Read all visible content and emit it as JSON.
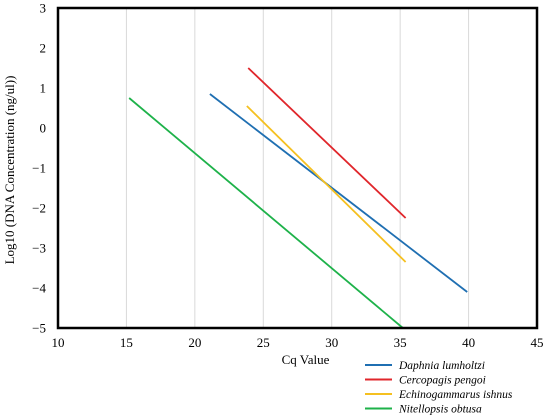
{
  "chart_data": {
    "type": "line",
    "title": "",
    "xlabel": "Cq Value",
    "ylabel": "Log10 (DNA Concentration (ng/ul))",
    "xlim": [
      10,
      45
    ],
    "ylim": [
      -5,
      3
    ],
    "xticks": [
      10,
      15,
      20,
      25,
      30,
      35,
      40,
      45
    ],
    "yticks": [
      3,
      2,
      1,
      0,
      -1,
      -2,
      -3,
      -4,
      -5
    ],
    "xtick_labels": [
      "10",
      "15",
      "20",
      "25",
      "30",
      "35",
      "40",
      "45"
    ],
    "ytick_labels": [
      "3",
      "2",
      "1",
      "0",
      "−1",
      "−2",
      "−3",
      "−4",
      "−5"
    ],
    "grid": {
      "vertical": true,
      "horizontal": false,
      "color": "#d9d9d9"
    },
    "legend": "bottom-right",
    "series": [
      {
        "name": "Daphnia lumholtzi",
        "color": "#1f6fb2",
        "x": [
          21.1,
          39.9
        ],
        "y": [
          0.85,
          -4.1
        ]
      },
      {
        "name": "Cercopagis pengoi",
        "color": "#e0262b",
        "x": [
          23.9,
          35.4
        ],
        "y": [
          1.5,
          -2.25
        ]
      },
      {
        "name": "Echinogammarus ishnus",
        "color": "#f5c020",
        "x": [
          23.8,
          35.4
        ],
        "y": [
          0.55,
          -3.35
        ]
      },
      {
        "name": "Nitellopsis obtusa",
        "color": "#1eb24a",
        "x": [
          15.2,
          35.2
        ],
        "y": [
          0.75,
          -5.0
        ]
      }
    ]
  }
}
